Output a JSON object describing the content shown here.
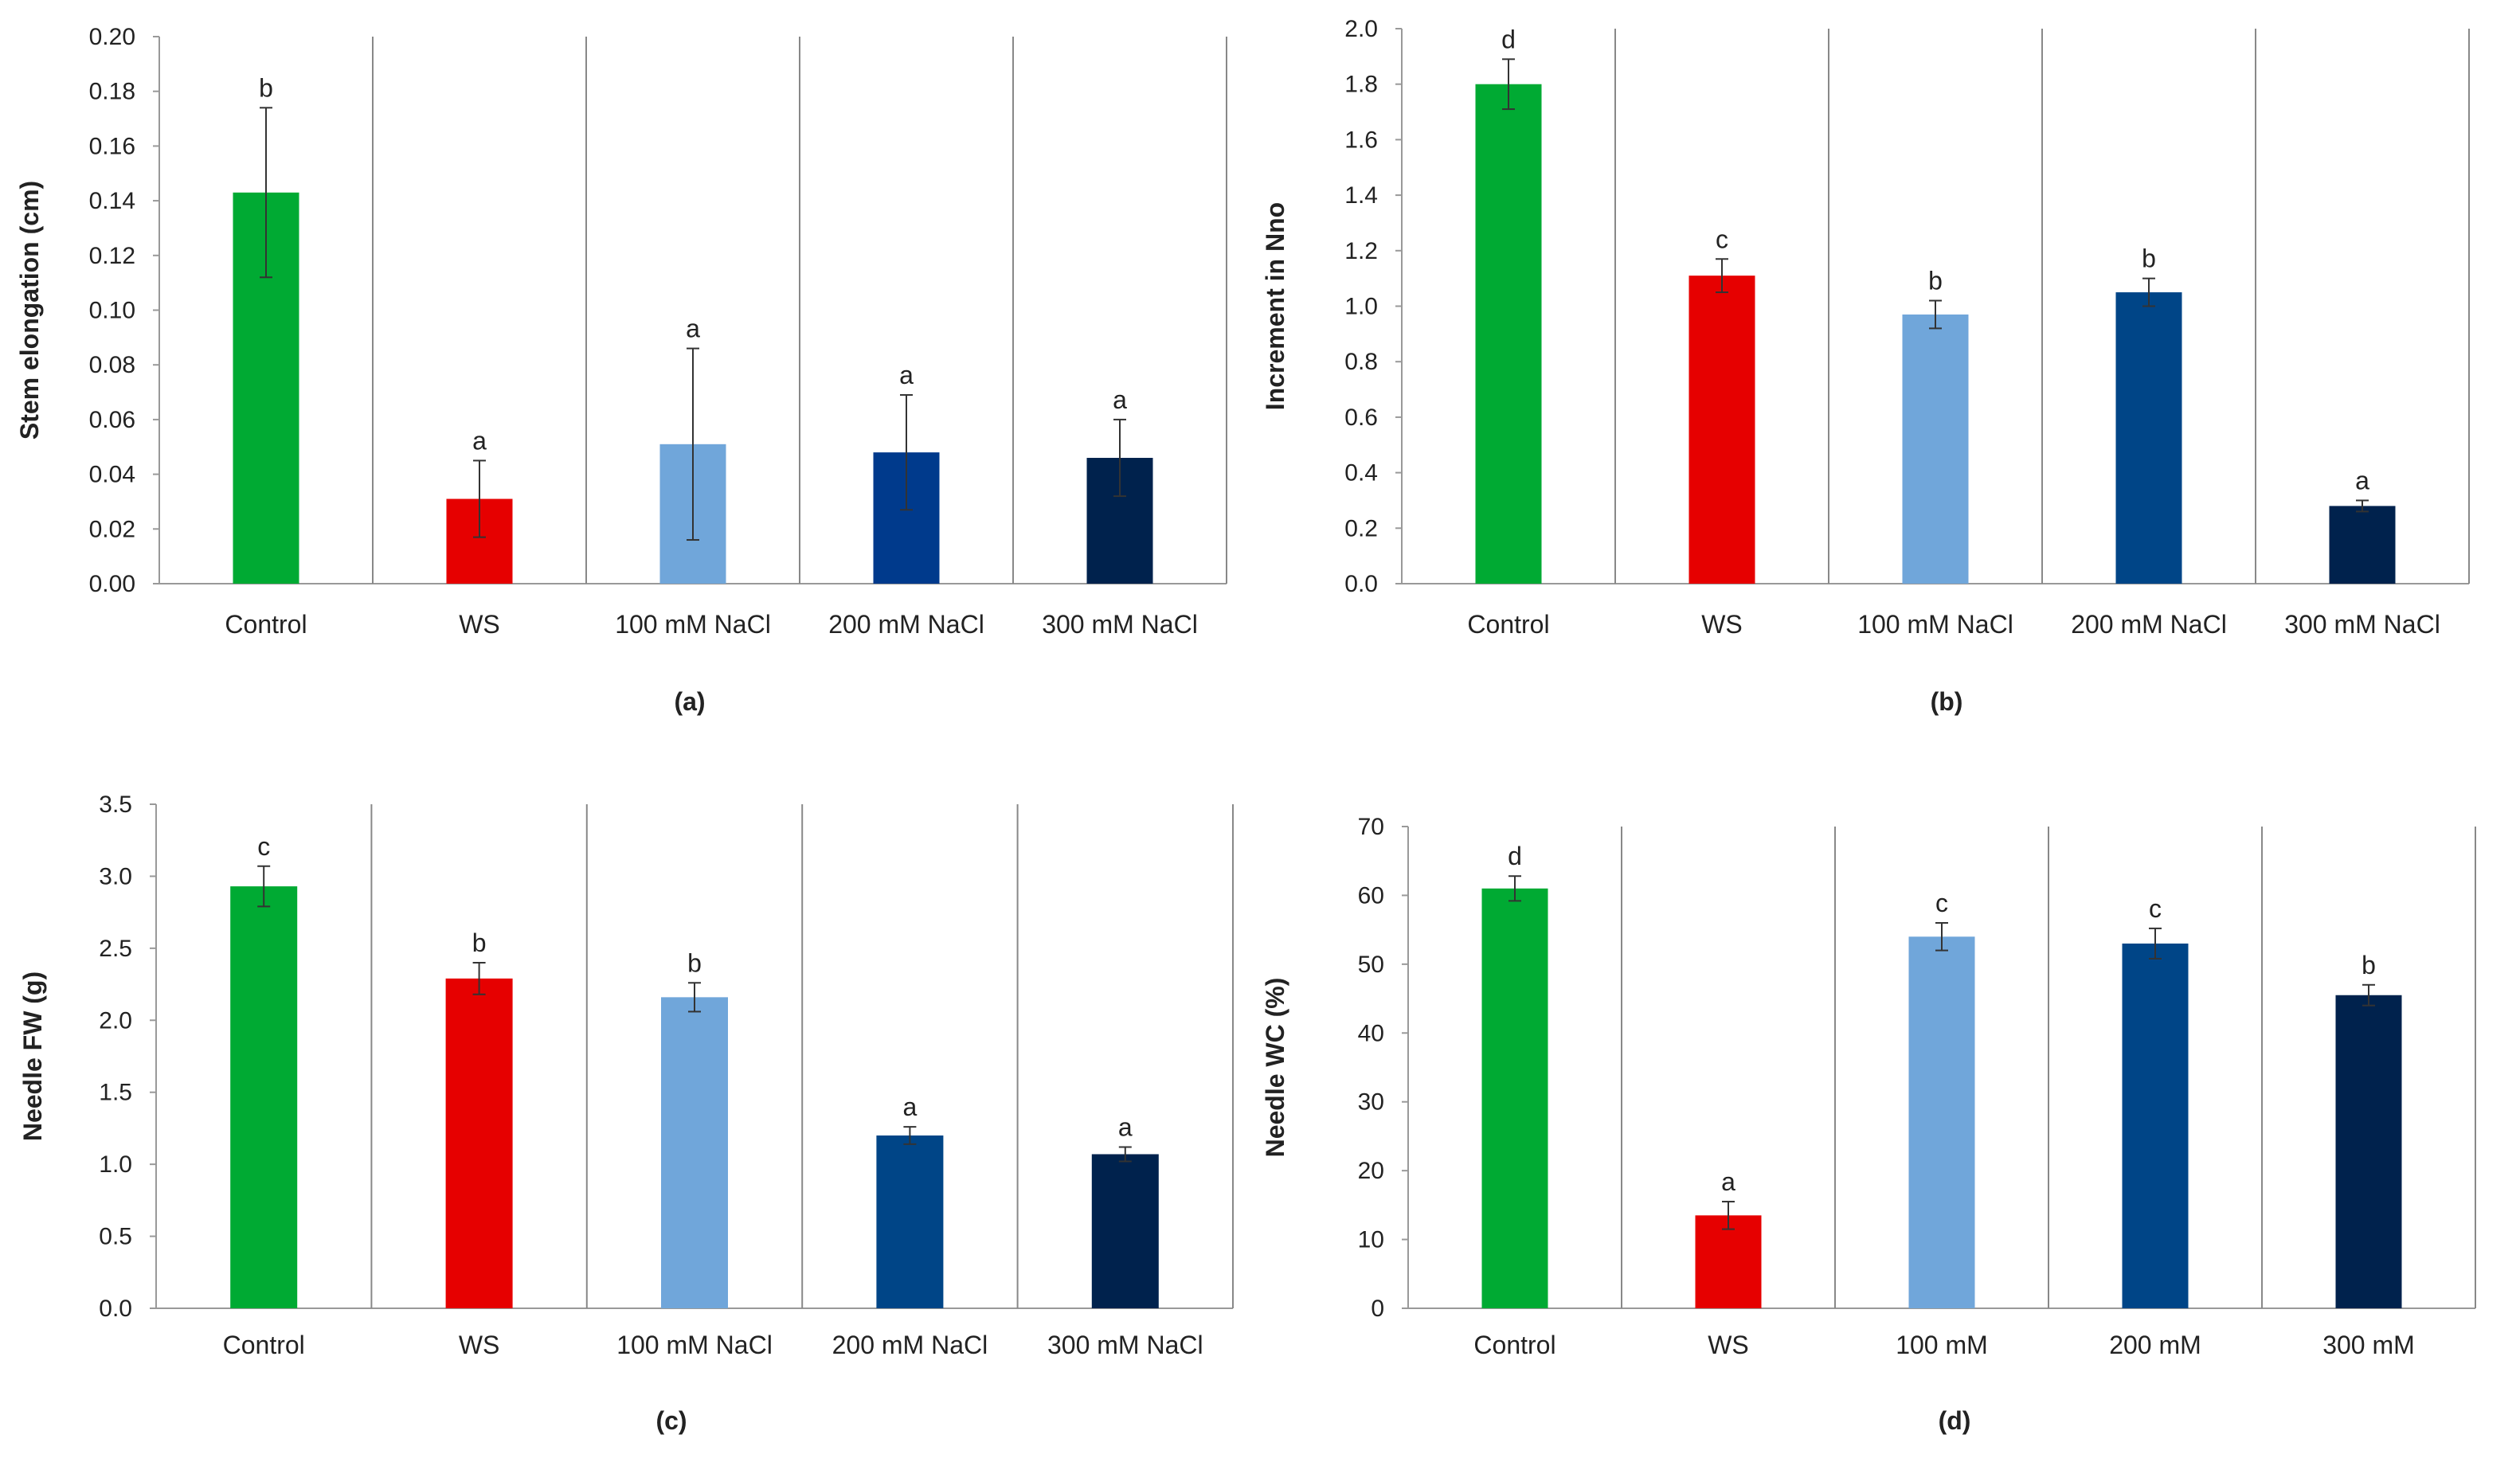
{
  "colors": {
    "control": "#00AA33",
    "ws": "#E60000",
    "nacl100": "#70A6DA",
    "nacl200": "#004587",
    "nacl300": "#00224D",
    "nacl200_a": "#003A8C",
    "axis": "#999999",
    "divider": "#888888",
    "error": "#333333"
  },
  "chart_data": [
    {
      "type": "bar",
      "panel": "(a)",
      "ylabel": "Stem elongation (cm)",
      "categories": [
        "Control",
        "WS",
        "100 mM NaCl",
        "200 mM NaCl",
        "300 mM NaCl"
      ],
      "values": [
        0.143,
        0.031,
        0.051,
        0.048,
        0.046
      ],
      "errors": [
        0.031,
        0.014,
        0.035,
        0.021,
        0.014
      ],
      "letters": [
        "b",
        "a",
        "a",
        "a",
        "a"
      ],
      "ylim": [
        0,
        0.2
      ],
      "yticks": [
        "0.00",
        "0.02",
        "0.04",
        "0.06",
        "0.08",
        "0.10",
        "0.12",
        "0.14",
        "0.16",
        "0.18",
        "0.20"
      ]
    },
    {
      "type": "bar",
      "panel": "(b)",
      "ylabel": "Increment in Nno",
      "categories": [
        "Control",
        "WS",
        "100 mM NaCl",
        "200 mM NaCl",
        "300 mM NaCl"
      ],
      "values": [
        1.8,
        1.11,
        0.97,
        1.05,
        0.28
      ],
      "errors": [
        0.09,
        0.06,
        0.05,
        0.05,
        0.02
      ],
      "letters": [
        "d",
        "c",
        "b",
        "b",
        "a"
      ],
      "ylim": [
        0,
        2.0
      ],
      "yticks": [
        "0.0",
        "0.2",
        "0.4",
        "0.6",
        "0.8",
        "1.0",
        "1.2",
        "1.4",
        "1.6",
        "1.8",
        "2.0"
      ]
    },
    {
      "type": "bar",
      "panel": "(c)",
      "ylabel": "Needle FW (g)",
      "categories": [
        "Control",
        "WS",
        "100 mM NaCl",
        "200 mM NaCl",
        "300 mM NaCl"
      ],
      "values": [
        2.93,
        2.29,
        2.16,
        1.2,
        1.07
      ],
      "errors": [
        0.14,
        0.11,
        0.1,
        0.06,
        0.05
      ],
      "letters": [
        "c",
        "b",
        "b",
        "a",
        "a"
      ],
      "ylim": [
        0,
        3.5
      ],
      "yticks": [
        "0.0",
        "0.5",
        "1.0",
        "1.5",
        "2.0",
        "2.5",
        "3.0",
        "3.5"
      ]
    },
    {
      "type": "bar",
      "panel": "(d)",
      "ylabel": "Needle WC (%)",
      "categories": [
        "Control",
        "WS",
        "100 mM",
        "200 mM",
        "300 mM"
      ],
      "values": [
        61,
        13.5,
        54,
        53,
        45.5
      ],
      "errors": [
        1.8,
        2.0,
        2.0,
        2.2,
        1.5
      ],
      "letters": [
        "d",
        "a",
        "c",
        "c",
        "b"
      ],
      "ylim": [
        0,
        70
      ],
      "yticks": [
        "0",
        "10",
        "20",
        "30",
        "40",
        "50",
        "60",
        "70"
      ]
    }
  ]
}
